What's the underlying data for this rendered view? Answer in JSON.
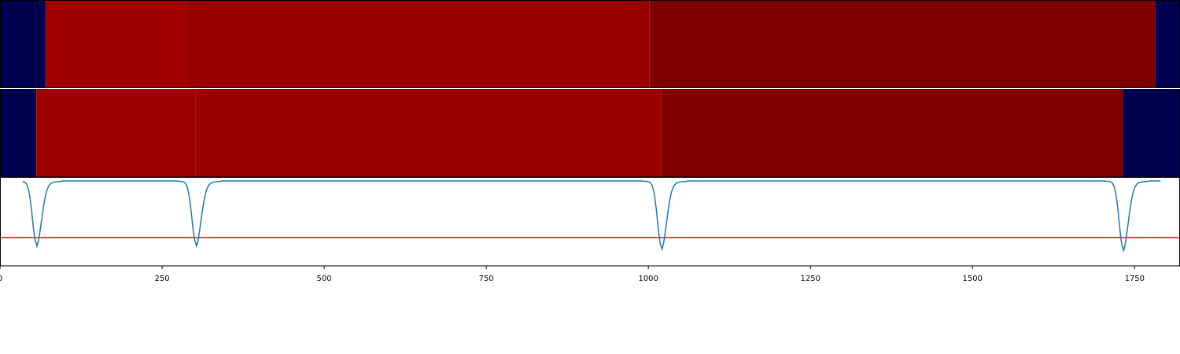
{
  "chart_data": {
    "type": "heatmap",
    "xlim": [
      0,
      1820
    ],
    "x_ticks": [
      0,
      250,
      500,
      750,
      1000,
      1250,
      1500,
      1750
    ],
    "x_tick_labels": [
      "0",
      "250",
      "500",
      "750",
      "1000",
      "1250",
      "1500",
      "1750"
    ],
    "grid": false,
    "legend": "none",
    "rows": [
      {
        "segments": [
          {
            "start": 0,
            "end": 70,
            "color": "#000050"
          },
          {
            "start": 70,
            "end": 290,
            "color": "#a00000"
          },
          {
            "start": 290,
            "end": 1002,
            "color": "#980000"
          },
          {
            "start": 1002,
            "end": 1782,
            "color": "#7f0000"
          },
          {
            "start": 1782,
            "end": 1820,
            "color": "#000050"
          }
        ]
      },
      {
        "segments": [
          {
            "start": 0,
            "end": 56,
            "color": "#000050"
          },
          {
            "start": 56,
            "end": 302,
            "color": "#a00000"
          },
          {
            "start": 302,
            "end": 1020,
            "color": "#980000"
          },
          {
            "start": 1020,
            "end": 1732,
            "color": "#7f0000"
          },
          {
            "start": 1732,
            "end": 1820,
            "color": "#000050"
          }
        ]
      }
    ],
    "signal": {
      "color": "#1f77b4",
      "baseline": 0,
      "ylim": [
        -1.35,
        0.05
      ],
      "dips": [
        {
          "x": 56,
          "depth": -0.93
        },
        {
          "x": 302,
          "depth": -0.93
        },
        {
          "x": 1020,
          "depth": -0.98
        },
        {
          "x": 1732,
          "depth": -1.0
        }
      ],
      "x_start": 35,
      "x_end": 1790
    },
    "threshold": {
      "value": -1.35,
      "color": "#ff0000"
    }
  }
}
